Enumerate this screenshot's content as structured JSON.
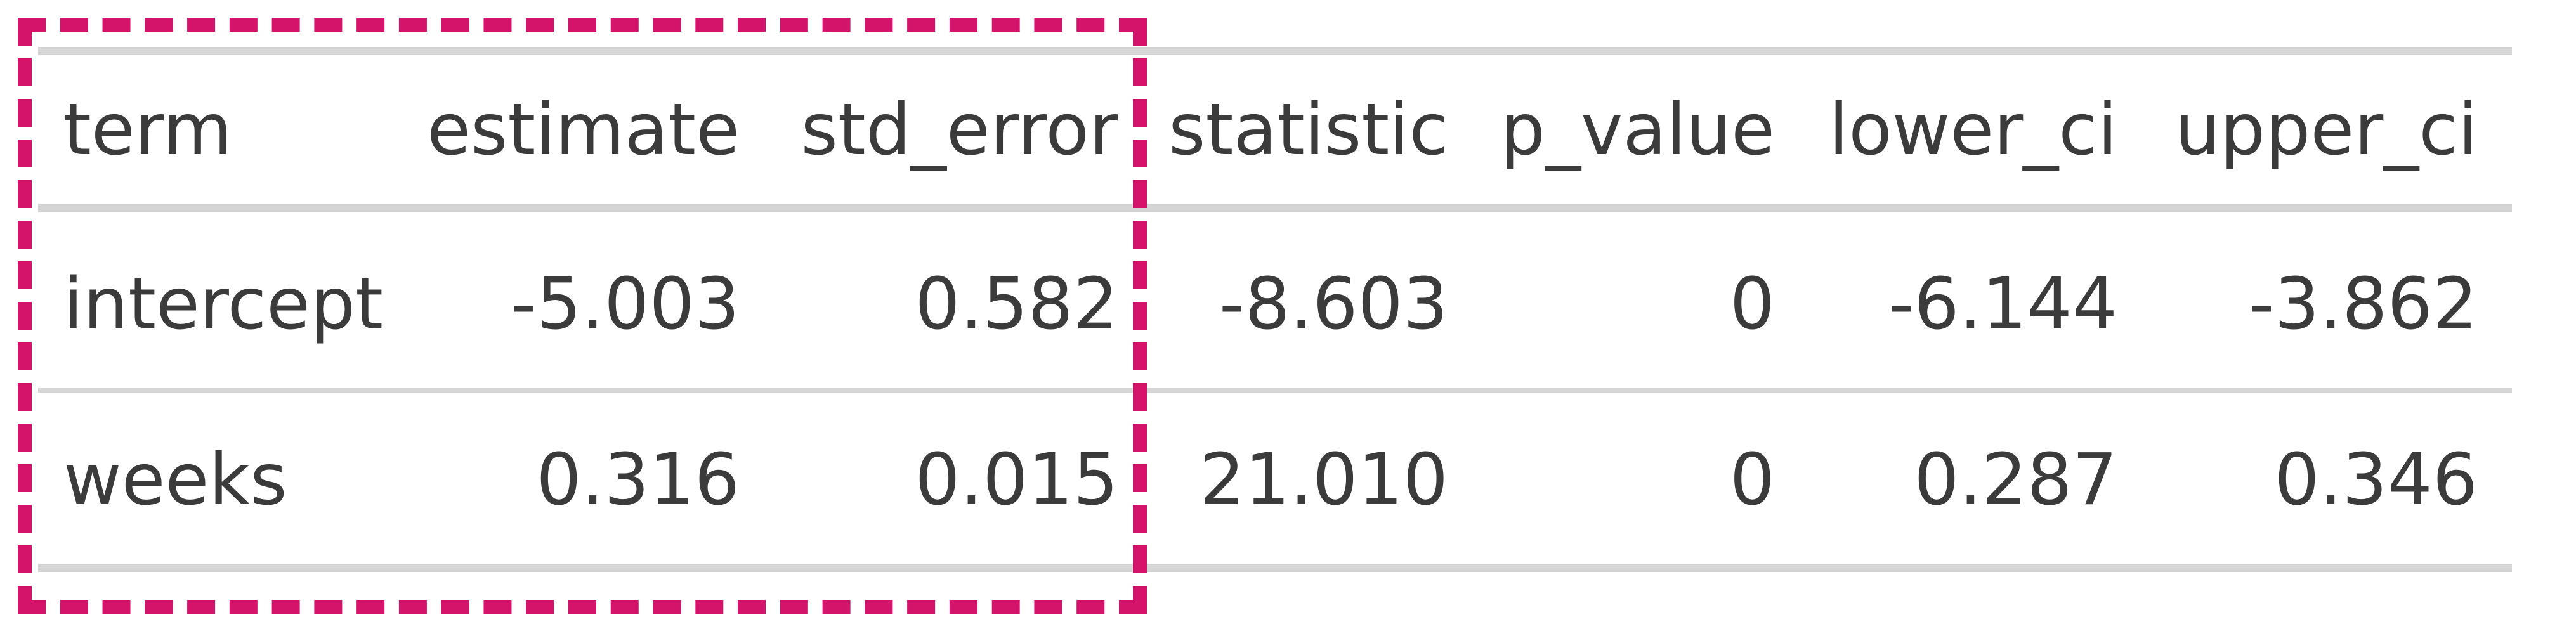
{
  "table": {
    "headers": [
      "term",
      "estimate",
      "std_error",
      "statistic",
      "p_value",
      "lower_ci",
      "upper_ci"
    ],
    "rows": [
      [
        "intercept",
        "-5.003",
        "0.582",
        "-8.603",
        "0",
        "-6.144",
        "-3.862"
      ],
      [
        "weeks",
        "0.316",
        "0.015",
        "21.010",
        "0",
        "0.287",
        "0.346"
      ]
    ]
  },
  "highlight": {
    "color": "#d4146b",
    "columns": [
      "term",
      "estimate",
      "std_error"
    ]
  }
}
